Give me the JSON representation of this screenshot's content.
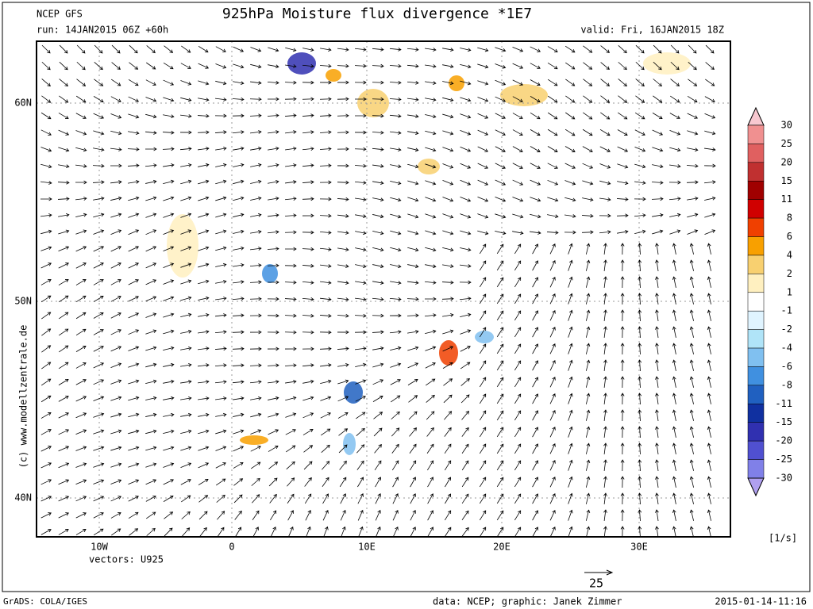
{
  "header": {
    "model": "NCEP GFS",
    "title": "925hPa Moisture flux divergence *1E7",
    "run": "run: 14JAN2015 06Z +60h",
    "valid": "valid: Fri, 16JAN2015 18Z"
  },
  "map": {
    "lat_labels": [
      "60N",
      "50N",
      "40N"
    ],
    "lon_labels": [
      "10W",
      "0",
      "10E",
      "20E",
      "30E"
    ],
    "side_credit": "(c) www.modellzentrale.de",
    "vectors_label": "vectors: U925",
    "vector_scale": "25"
  },
  "colorbar": {
    "levels": [
      30,
      25,
      20,
      15,
      11,
      8,
      6,
      4,
      2,
      1,
      -1,
      -2,
      -4,
      -6,
      -8,
      -11,
      -15,
      -20,
      -25,
      -30
    ],
    "colors": [
      "#f8c8d0",
      "#f09090",
      "#e06060",
      "#c03030",
      "#a00000",
      "#d00000",
      "#f04000",
      "#f8a000",
      "#f8d070",
      "#fff0c0",
      "#ffffff",
      "#e0f4ff",
      "#b0e4f8",
      "#80c0f0",
      "#4090e0",
      "#2060c0",
      "#1030a0",
      "#3030b0",
      "#5050d0",
      "#8080e8",
      "#b0a0f0"
    ],
    "unit": "[1/s]"
  },
  "footer": {
    "software": "GrADS: COLA/IGES",
    "credits": "data: NCEP; graphic: Janek Zimmer",
    "timestamp": "2015-01-14-11:16"
  }
}
